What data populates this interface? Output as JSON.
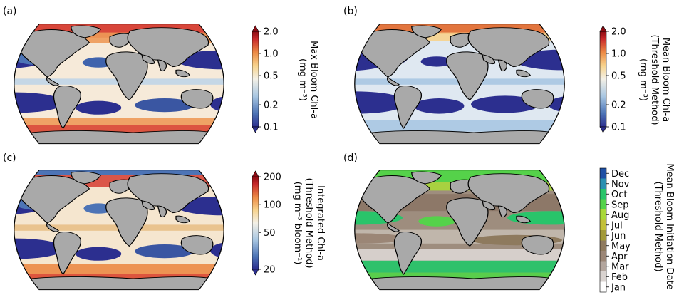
{
  "chart_data": [
    {
      "type": "heatmap",
      "panel_label": "(a)",
      "colorbar": {
        "label_lines": [
          "Max Bloom Chl-a",
          "(mg m⁻³)"
        ],
        "scale": "log",
        "ticks": [
          "0.1",
          "0.2",
          "0.5",
          "1.0",
          "2.0"
        ],
        "tick_values": [
          0.1,
          0.2,
          0.5,
          1.0,
          2.0
        ],
        "range": [
          0.1,
          2.0
        ],
        "colormap": [
          "#2c2f8f",
          "#4d74b6",
          "#a9c7e2",
          "#f3f0e6",
          "#f7d38d",
          "#ec8a45",
          "#c8292b",
          "#8b0a12"
        ],
        "extend": "both"
      }
    },
    {
      "type": "heatmap",
      "panel_label": "(b)",
      "colorbar": {
        "label_lines": [
          "Mean Bloom Chl-a",
          "(Threshold Method)",
          "(mg m⁻³)"
        ],
        "scale": "log",
        "ticks": [
          "0.1",
          "0.2",
          "0.5",
          "1.0",
          "2.0"
        ],
        "tick_values": [
          0.1,
          0.2,
          0.5,
          1.0,
          2.0
        ],
        "range": [
          0.1,
          2.0
        ],
        "colormap": [
          "#2c2f8f",
          "#4d74b6",
          "#a9c7e2",
          "#f3f0e6",
          "#f7d38d",
          "#ec8a45",
          "#c8292b",
          "#8b0a12"
        ],
        "extend": "both"
      }
    },
    {
      "type": "heatmap",
      "panel_label": "(c)",
      "colorbar": {
        "label_lines": [
          "Integrated Chl-a",
          "(Threshold Method)",
          "(mg m⁻³ bloom⁻¹)"
        ],
        "scale": "log",
        "ticks": [
          "20",
          "50",
          "100",
          "200"
        ],
        "tick_values": [
          20,
          50,
          100,
          200
        ],
        "range": [
          20,
          200
        ],
        "colormap": [
          "#2c2f8f",
          "#4d74b6",
          "#a9c7e2",
          "#f3f0e6",
          "#f7d38d",
          "#ec8a45",
          "#c8292b",
          "#8b0a12"
        ],
        "extend": "both"
      }
    },
    {
      "type": "heatmap",
      "panel_label": "(d)",
      "colorbar": {
        "label_lines": [
          "Mean Bloom Initiation Date",
          "(Threshold Method)"
        ],
        "scale": "categorical",
        "ticks": [
          "Jan",
          "Feb",
          "Mar",
          "Apr",
          "May",
          "Jun",
          "Jul",
          "Aug",
          "Sep",
          "Oct",
          "Nov",
          "Dec"
        ],
        "colormap": [
          "#ffffff",
          "#d9d3d0",
          "#b3a69e",
          "#9b8676",
          "#8e7a5e",
          "#a29a3a",
          "#c2c03a",
          "#a9d83a",
          "#55d24a",
          "#29c46a",
          "#2a8fb0",
          "#1e4fa3"
        ],
        "extend": "none"
      }
    }
  ]
}
